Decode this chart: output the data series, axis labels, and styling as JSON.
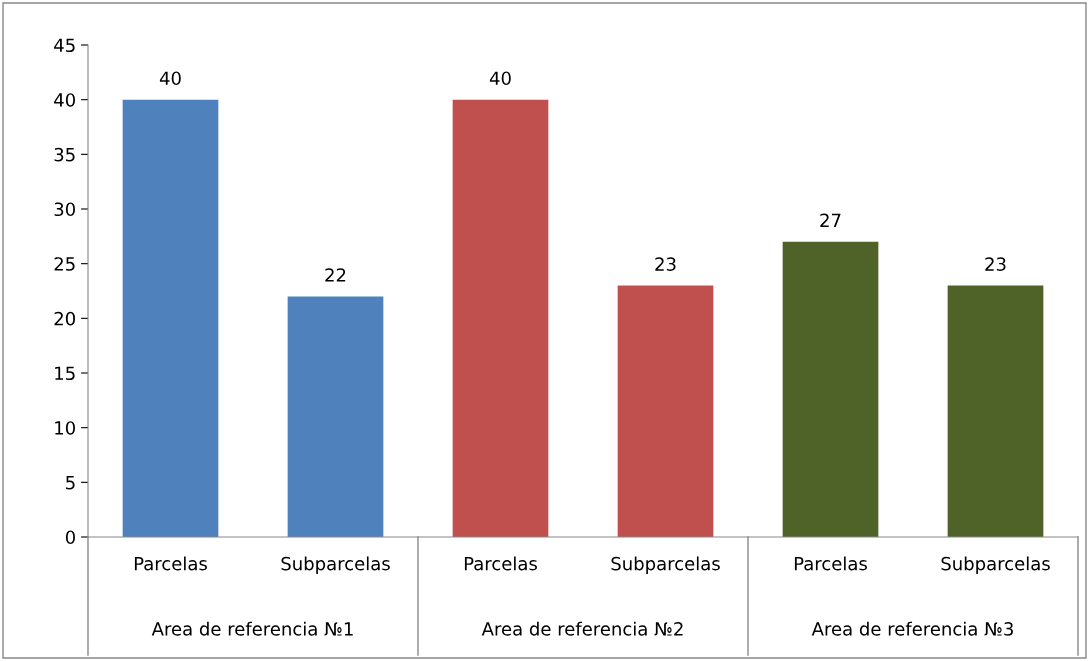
{
  "chart_data": {
    "type": "bar",
    "categories": [
      "Parcelas",
      "Subparcelas",
      "Parcelas",
      "Subparcelas",
      "Parcelas",
      "Subparcelas"
    ],
    "values": [
      40,
      22,
      40,
      23,
      27,
      23
    ],
    "colors": [
      "#4f81bd",
      "#4f81bd",
      "#c0504d",
      "#c0504d",
      "#4f6228",
      "#4f6228"
    ],
    "annotations": [
      "Area de referencia №1",
      "Area de referencia №2",
      "Area de referencia №3"
    ],
    "ylim": [
      0,
      45
    ],
    "yticks": [
      0,
      5,
      10,
      15,
      20,
      25,
      30,
      35,
      40,
      45
    ],
    "data_labels": true,
    "grid": false,
    "legend": false
  }
}
